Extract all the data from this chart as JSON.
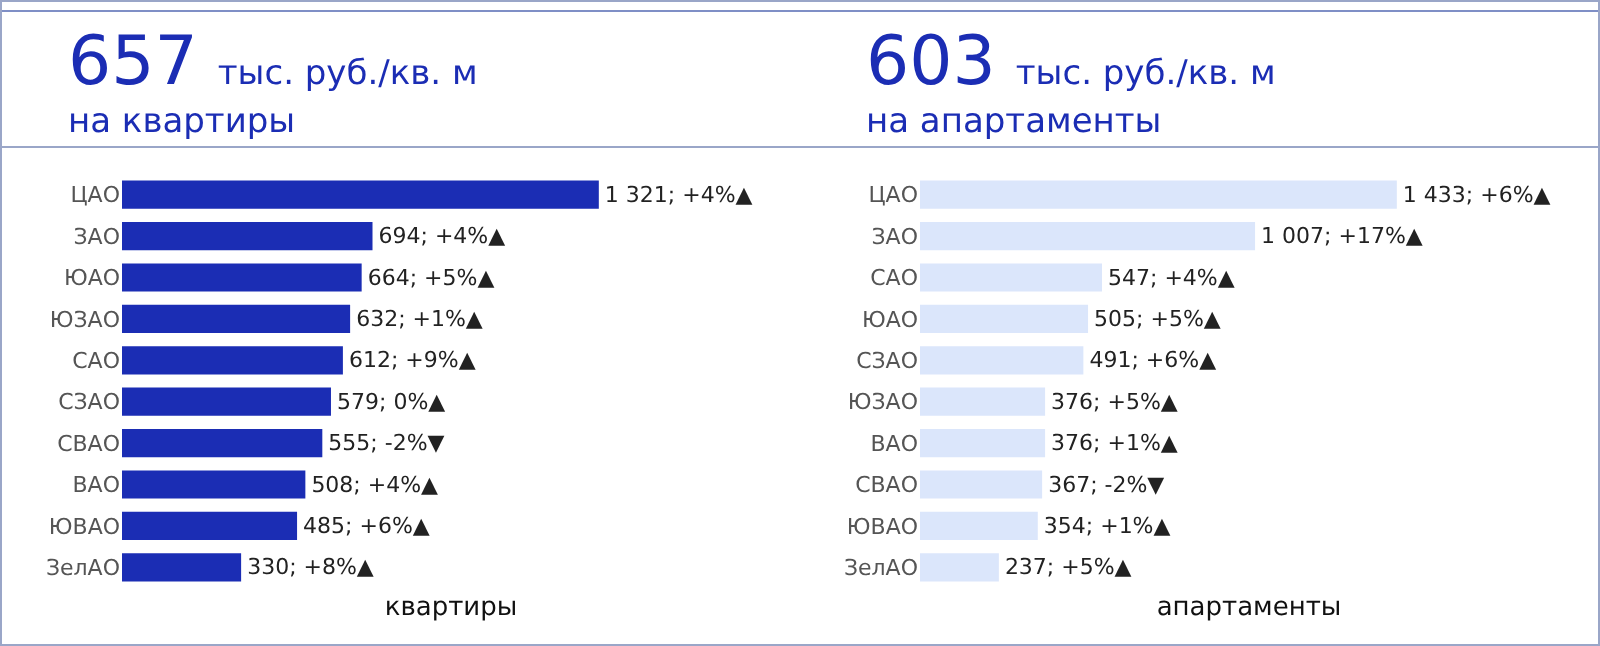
{
  "chart_data": [
    {
      "type": "bar",
      "orientation": "horizontal",
      "title": "657",
      "subtitle": "тыс. руб./кв. м",
      "annotations": [
        "на квартиры"
      ],
      "xlabel": "квартиры",
      "categories": [
        "ЦАО",
        "ЗАО",
        "ЮАО",
        "ЮЗАО",
        "САО",
        "СЗАО",
        "СВАО",
        "ВАО",
        "ЮВАО",
        "ЗелАО"
      ],
      "series": [
        {
          "color": "#1b2db4",
          "values": [
            1321,
            694,
            664,
            632,
            612,
            579,
            555,
            508,
            485,
            330
          ],
          "value_labels": [
            "1 321; +4%▲",
            "694; +4%▲",
            "664; +5%▲",
            "632; +1%▲",
            "612; +9%▲",
            "579; 0%▲",
            "555; -2%▼",
            "508; +4%▲",
            "485; +6%▲",
            "330; +8%▲"
          ]
        }
      ],
      "grid": false
    },
    {
      "type": "bar",
      "orientation": "horizontal",
      "title": "603",
      "subtitle": "тыс. руб./кв. м",
      "annotations": [
        "на апартаменты"
      ],
      "xlabel": "апартаменты",
      "categories": [
        "ЦАО",
        "ЗАО",
        "САО",
        "ЮАО",
        "СЗАО",
        "ЮЗАО",
        "ВАО",
        "СВАО",
        "ЮВАО",
        "ЗелАО"
      ],
      "series": [
        {
          "color": "#dbe6fb",
          "values": [
            1433,
            1007,
            547,
            505,
            491,
            376,
            376,
            367,
            354,
            237
          ],
          "value_labels": [
            "1 433; +6%▲",
            "1 007; +17%▲",
            "547; +4%▲",
            "505; +5%▲",
            "491; +6%▲",
            "376; +5%▲",
            "376; +1%▲",
            "367; -2%▼",
            "354; +1%▲",
            "237; +5%▲"
          ]
        }
      ],
      "grid": false
    }
  ]
}
